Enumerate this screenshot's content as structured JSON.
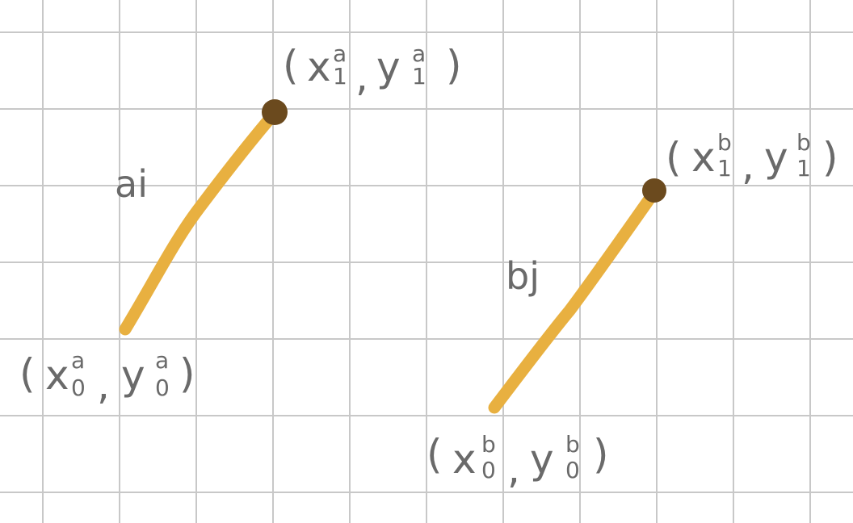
{
  "segments": [
    {
      "name": "a",
      "label": "ai",
      "start_point": {
        "x_label": "x",
        "y_label": "y",
        "sup": "a",
        "sub": "0"
      },
      "end_point": {
        "x_label": "x",
        "y_label": "y",
        "sup": "a",
        "sub": "1"
      }
    },
    {
      "name": "b",
      "label": "bj",
      "start_point": {
        "x_label": "x",
        "y_label": "y",
        "sup": "b",
        "sub": "0"
      },
      "end_point": {
        "x_label": "x",
        "y_label": "y",
        "sup": "b",
        "sub": "1"
      }
    }
  ],
  "colors": {
    "grid": "#c8c8c8",
    "segment": "#e8b040",
    "endpoint": "#6b4a1e",
    "text": "#6a6a6a"
  },
  "punctuation": {
    "open": "(",
    "comma": ",",
    "close": ")"
  }
}
